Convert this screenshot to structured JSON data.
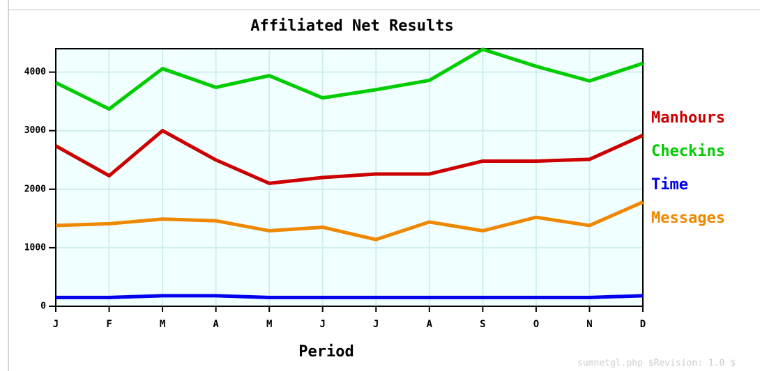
{
  "chart_data": {
    "type": "line",
    "title": "Affiliated Net Results",
    "x_label": "Period",
    "footer": "sumnetgl.php $Revision: 1.0 $",
    "categories": [
      "J",
      "F",
      "M",
      "A",
      "M",
      "J",
      "J",
      "A",
      "S",
      "O",
      "N",
      "D"
    ],
    "series": [
      {
        "name": "Manhours",
        "color": "#cc0000",
        "values": [
          2740,
          2230,
          3000,
          2500,
          2100,
          2200,
          2260,
          2260,
          2480,
          2480,
          2510,
          2920
        ]
      },
      {
        "name": "Checkins",
        "color": "#00cc00",
        "values": [
          3820,
          3370,
          4060,
          3740,
          3940,
          3560,
          3700,
          3860,
          4390,
          4100,
          3850,
          4150
        ]
      },
      {
        "name": "Time",
        "color": "#0000ee",
        "values": [
          150,
          150,
          180,
          180,
          150,
          150,
          150,
          150,
          150,
          150,
          150,
          180
        ]
      },
      {
        "name": "Messages",
        "color": "#ee8800",
        "values": [
          1380,
          1410,
          1490,
          1460,
          1290,
          1350,
          1140,
          1440,
          1290,
          1520,
          1380,
          1780
        ]
      }
    ],
    "ylim": [
      0,
      4400
    ],
    "yticks": [
      0,
      1000,
      2000,
      3000,
      4000
    ],
    "grid": true
  }
}
